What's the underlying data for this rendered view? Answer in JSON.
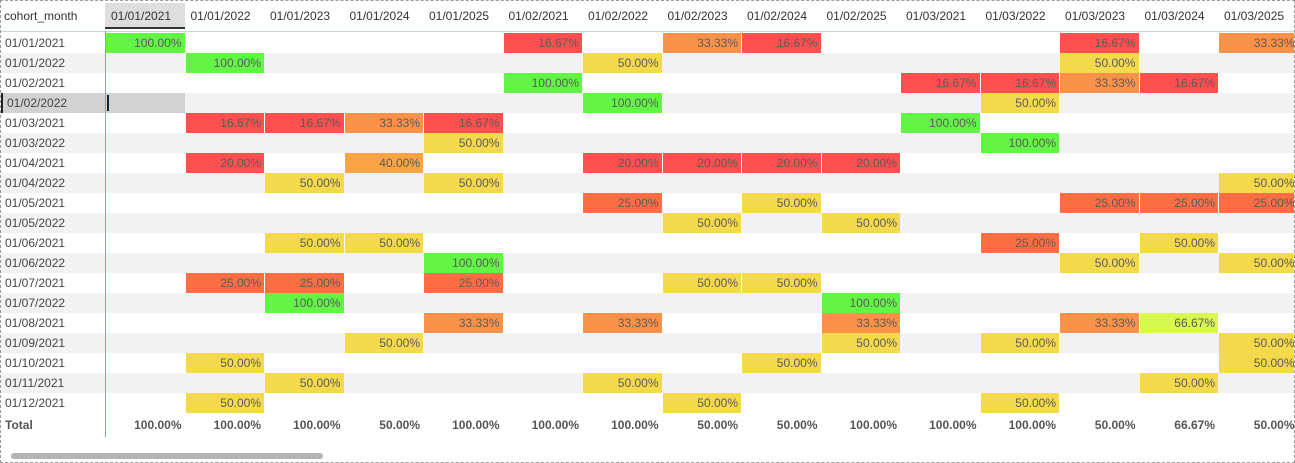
{
  "row_header_title": "cohort_month",
  "columns": [
    "01/01/2021",
    "01/01/2022",
    "01/01/2023",
    "01/01/2024",
    "01/01/2025",
    "01/02/2021",
    "01/02/2022",
    "01/02/2023",
    "01/02/2024",
    "01/02/2025",
    "01/03/2021",
    "01/03/2022",
    "01/03/2023",
    "01/03/2024",
    "01/03/2025"
  ],
  "sorted_column_index": 0,
  "selected_row_index": 3,
  "rows": [
    {
      "label": "01/01/2021",
      "values": [
        {
          "c": 0,
          "v": "100.00%",
          "k": "g"
        },
        {
          "c": 5,
          "v": "16.67%",
          "k": "r"
        },
        {
          "c": 7,
          "v": "33.33%",
          "k": "o"
        },
        {
          "c": 8,
          "v": "16.67%",
          "k": "r"
        },
        {
          "c": 12,
          "v": "16.67%",
          "k": "r"
        },
        {
          "c": 14,
          "v": "33.33%",
          "k": "o"
        }
      ]
    },
    {
      "label": "01/01/2022",
      "values": [
        {
          "c": 1,
          "v": "100.00%",
          "k": "g"
        },
        {
          "c": 6,
          "v": "50.00%",
          "k": "y"
        },
        {
          "c": 12,
          "v": "50.00%",
          "k": "y"
        }
      ]
    },
    {
      "label": "01/02/2021",
      "values": [
        {
          "c": 5,
          "v": "100.00%",
          "k": "g"
        },
        {
          "c": 10,
          "v": "16.67%",
          "k": "r"
        },
        {
          "c": 11,
          "v": "16.67%",
          "k": "r"
        },
        {
          "c": 12,
          "v": "33.33%",
          "k": "o"
        },
        {
          "c": 13,
          "v": "16.67%",
          "k": "r"
        }
      ]
    },
    {
      "label": "01/02/2022",
      "values": [
        {
          "c": 6,
          "v": "100.00%",
          "k": "g"
        },
        {
          "c": 11,
          "v": "50.00%",
          "k": "y"
        }
      ]
    },
    {
      "label": "01/03/2021",
      "values": [
        {
          "c": 1,
          "v": "16.67%",
          "k": "r"
        },
        {
          "c": 2,
          "v": "16.67%",
          "k": "r"
        },
        {
          "c": 3,
          "v": "33.33%",
          "k": "o"
        },
        {
          "c": 4,
          "v": "16.67%",
          "k": "r"
        },
        {
          "c": 10,
          "v": "100.00%",
          "k": "g"
        }
      ]
    },
    {
      "label": "01/03/2022",
      "values": [
        {
          "c": 4,
          "v": "50.00%",
          "k": "y"
        },
        {
          "c": 11,
          "v": "100.00%",
          "k": "g"
        }
      ]
    },
    {
      "label": "01/04/2021",
      "values": [
        {
          "c": 1,
          "v": "20.00%",
          "k": "r"
        },
        {
          "c": 3,
          "v": "40.00%",
          "k": "o2"
        },
        {
          "c": 6,
          "v": "20.00%",
          "k": "r"
        },
        {
          "c": 7,
          "v": "20.00%",
          "k": "r"
        },
        {
          "c": 8,
          "v": "20.00%",
          "k": "r"
        },
        {
          "c": 9,
          "v": "20.00%",
          "k": "r"
        }
      ]
    },
    {
      "label": "01/04/2022",
      "values": [
        {
          "c": 2,
          "v": "50.00%",
          "k": "y"
        },
        {
          "c": 4,
          "v": "50.00%",
          "k": "y"
        },
        {
          "c": 14,
          "v": "50.00%",
          "k": "y"
        }
      ]
    },
    {
      "label": "01/05/2021",
      "values": [
        {
          "c": 6,
          "v": "25.00%",
          "k": "ro"
        },
        {
          "c": 8,
          "v": "50.00%",
          "k": "y"
        },
        {
          "c": 12,
          "v": "25.00%",
          "k": "ro"
        },
        {
          "c": 13,
          "v": "25.00%",
          "k": "ro"
        },
        {
          "c": 14,
          "v": "25.00%",
          "k": "ro"
        }
      ]
    },
    {
      "label": "01/05/2022",
      "values": [
        {
          "c": 7,
          "v": "50.00%",
          "k": "y"
        },
        {
          "c": 9,
          "v": "50.00%",
          "k": "y"
        }
      ]
    },
    {
      "label": "01/06/2021",
      "values": [
        {
          "c": 2,
          "v": "50.00%",
          "k": "y"
        },
        {
          "c": 3,
          "v": "50.00%",
          "k": "y"
        },
        {
          "c": 11,
          "v": "25.00%",
          "k": "ro"
        },
        {
          "c": 13,
          "v": "50.00%",
          "k": "y"
        }
      ]
    },
    {
      "label": "01/06/2022",
      "values": [
        {
          "c": 4,
          "v": "100.00%",
          "k": "g"
        },
        {
          "c": 12,
          "v": "50.00%",
          "k": "y"
        },
        {
          "c": 14,
          "v": "50.00%",
          "k": "y"
        }
      ]
    },
    {
      "label": "01/07/2021",
      "values": [
        {
          "c": 1,
          "v": "25.00%",
          "k": "ro"
        },
        {
          "c": 2,
          "v": "25.00%",
          "k": "ro"
        },
        {
          "c": 4,
          "v": "25.00%",
          "k": "ro"
        },
        {
          "c": 7,
          "v": "50.00%",
          "k": "y"
        },
        {
          "c": 8,
          "v": "50.00%",
          "k": "y"
        }
      ]
    },
    {
      "label": "01/07/2022",
      "values": [
        {
          "c": 2,
          "v": "100.00%",
          "k": "g"
        },
        {
          "c": 9,
          "v": "100.00%",
          "k": "g"
        }
      ]
    },
    {
      "label": "01/08/2021",
      "values": [
        {
          "c": 4,
          "v": "33.33%",
          "k": "o"
        },
        {
          "c": 6,
          "v": "33.33%",
          "k": "o"
        },
        {
          "c": 9,
          "v": "33.33%",
          "k": "o"
        },
        {
          "c": 12,
          "v": "33.33%",
          "k": "o"
        },
        {
          "c": 13,
          "v": "66.67%",
          "k": "lg"
        }
      ]
    },
    {
      "label": "01/09/2021",
      "values": [
        {
          "c": 3,
          "v": "50.00%",
          "k": "y"
        },
        {
          "c": 9,
          "v": "50.00%",
          "k": "y"
        },
        {
          "c": 11,
          "v": "50.00%",
          "k": "y"
        },
        {
          "c": 14,
          "v": "50.00%",
          "k": "y"
        }
      ]
    },
    {
      "label": "01/10/2021",
      "values": [
        {
          "c": 1,
          "v": "50.00%",
          "k": "y"
        },
        {
          "c": 8,
          "v": "50.00%",
          "k": "y"
        },
        {
          "c": 14,
          "v": "50.00%",
          "k": "y"
        }
      ]
    },
    {
      "label": "01/11/2021",
      "values": [
        {
          "c": 2,
          "v": "50.00%",
          "k": "y"
        },
        {
          "c": 6,
          "v": "50.00%",
          "k": "y"
        },
        {
          "c": 13,
          "v": "50.00%",
          "k": "y"
        }
      ]
    },
    {
      "label": "01/12/2021",
      "values": [
        {
          "c": 1,
          "v": "50.00%",
          "k": "y"
        },
        {
          "c": 7,
          "v": "50.00%",
          "k": "y"
        },
        {
          "c": 11,
          "v": "50.00%",
          "k": "y"
        }
      ]
    }
  ],
  "total": {
    "label": "Total",
    "values": [
      "100.00%",
      "100.00%",
      "100.00%",
      "50.00%",
      "100.00%",
      "100.00%",
      "100.00%",
      "50.00%",
      "50.00%",
      "100.00%",
      "100.00%",
      "100.00%",
      "50.00%",
      "66.67%",
      "50.00%"
    ]
  },
  "colors": {
    "g": "#62f546",
    "y": "#f5d94c",
    "o": "#fc9249",
    "o2": "#f9a545",
    "ro": "#fe6e45",
    "r": "#fe504f",
    "lg": "#d7f84e",
    "band": "#f2f2f2",
    "grid_line": "#6aaedc"
  }
}
